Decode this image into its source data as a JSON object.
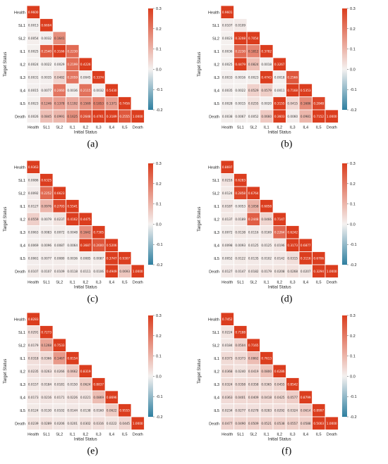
{
  "colors": {
    "negative": "#2e7fa0",
    "neutral": "#f4f1f0",
    "positive": "#db3d1e",
    "grid": "#ffffff"
  },
  "chart_data": [
    {
      "type": "heatmap",
      "panel_label": "(a)",
      "mask": "lower-triangle",
      "rows": [
        "Health",
        "SL1",
        "SL2",
        "IL1",
        "IL2",
        "IL3",
        "IL4",
        "IL5",
        "Death"
      ],
      "cols": [
        "Health",
        "SL1",
        "SL2",
        "IL1",
        "IL2",
        "IL3",
        "IL4",
        "IL5",
        "Death"
      ],
      "xlabel": "Initial Status",
      "ylabel": "Target Status",
      "colorbar": {
        "min": -0.2,
        "max": 0.3,
        "ticks": [
          "0.3",
          "0.2",
          "0.1",
          "0.0",
          "-0.1",
          "-0.2"
        ]
      },
      "values": [
        [
          0.96
        ],
        [
          0.0013,
          0.6604
        ],
        [
          0.0054,
          0.0032,
          0.1641
        ],
        [
          0.0025,
          0.254,
          0.3166,
          0.223
        ],
        [
          0.0024,
          0.0022,
          0.0029,
          0.2199,
          0.4226
        ],
        [
          0.0031,
          0.0035,
          0.0482,
          0.2059,
          0.0045,
          0.3374
        ],
        [
          0.0015,
          0.0077,
          0.206,
          0.0036,
          0.2115,
          0.0032,
          0.543
        ],
        [
          0.0023,
          0.1246,
          0.1378,
          0.1192,
          0.1569,
          0.1853,
          0.1371,
          0.7456
        ],
        [
          0.0026,
          0.0845,
          0.0991,
          0.1625,
          0.2648,
          0.4761,
          0.3189,
          0.2555,
          1.0
        ]
      ]
    },
    {
      "type": "heatmap",
      "panel_label": "(b)",
      "mask": "lower-triangle",
      "rows": [
        "Health",
        "SL1",
        "SL2",
        "IL1",
        "IL2",
        "IL3",
        "IL4",
        "IL5",
        "Death"
      ],
      "cols": [
        "Health",
        "SL1",
        "SL2",
        "IL1",
        "IL2",
        "IL3",
        "IL4",
        "IL5",
        "Death"
      ],
      "xlabel": "Initial Status",
      "ylabel": "Target Status",
      "colorbar": {
        "min": -0.2,
        "max": 0.3,
        "ticks": [
          "0.3",
          "0.2",
          "0.1",
          "0.0",
          "-0.1",
          "-0.2"
        ]
      },
      "values": [
        [
          0.9601
        ],
        [
          0.0107,
          0.0109
        ],
        [
          0.0023,
          0.3208,
          0.7054
        ],
        [
          0.0036,
          0.223,
          0.1812,
          0.3782
        ],
        [
          0.0025,
          0.4479,
          0.0824,
          0.0018,
          0.3267
        ],
        [
          0.0033,
          0.0016,
          0.0023,
          0.4743,
          0.0018,
          0.2566
        ],
        [
          0.0035,
          0.0022,
          0.0529,
          0.0579,
          0.0011,
          0.7168,
          0.5353
        ],
        [
          0.0028,
          0.0015,
          0.0255,
          0.002,
          0.3155,
          0.0415,
          0.1686,
          0.2848
        ],
        [
          0.0038,
          0.0067,
          0.0052,
          0.066,
          0.3603,
          0.006,
          0.0981,
          0.7152,
          1.0
        ]
      ]
    },
    {
      "type": "heatmap",
      "panel_label": "(c)",
      "mask": "lower-triangle",
      "rows": [
        "Health",
        "SL1",
        "SL2",
        "IL1",
        "IL2",
        "IL3",
        "IL4",
        "IL5",
        "Death"
      ],
      "cols": [
        "Health",
        "SL1",
        "SL2",
        "IL1",
        "IL2",
        "IL3",
        "IL4",
        "IL5",
        "Death"
      ],
      "xlabel": "Initial Status",
      "ylabel": "Target Status",
      "colorbar": {
        "min": -0.2,
        "max": 0.3,
        "ticks": [
          "0.3",
          "0.2",
          "0.1",
          "0.0",
          "-0.1",
          "-0.2"
        ]
      },
      "values": [
        [
          0.9363
        ],
        [
          0.0086,
          0.6325
        ],
        [
          0.0092,
          0.2252,
          0.6623
        ],
        [
          0.0127,
          0.0976,
          0.2793,
          0.5541
        ],
        [
          0.0559,
          0.0079,
          0.0237,
          0.4162,
          0.4475
        ],
        [
          0.0063,
          0.0083,
          0.0072,
          0.0048,
          0.1642,
          0.7305
        ],
        [
          0.0069,
          0.0096,
          0.0087,
          0.0064,
          0.3687,
          0.26,
          0.5206
        ],
        [
          0.0061,
          0.0077,
          0.008,
          0.0036,
          0.0085,
          0.0087,
          0.3747,
          0.9307
        ],
        [
          0.0107,
          0.0107,
          0.0109,
          0.0118,
          0.0111,
          0.0106,
          0.4949,
          0.0693,
          1.0
        ]
      ]
    },
    {
      "type": "heatmap",
      "panel_label": "(d)",
      "mask": "lower-triangle",
      "rows": [
        "Health",
        "SL1",
        "SL2",
        "IL1",
        "IL2",
        "IL3",
        "IL4",
        "IL5",
        "Death"
      ],
      "cols": [
        "Health",
        "SL1",
        "SL2",
        "IL1",
        "IL2",
        "IL3",
        "IL4",
        "IL5",
        "Death"
      ],
      "xlabel": "Initial Status",
      "ylabel": "Target Status",
      "colorbar": {
        "min": -0.2,
        "max": 0.3,
        "ticks": [
          "0.3",
          "0.2",
          "0.1",
          "0.0",
          "-0.1",
          "-0.2"
        ]
      },
      "values": [
        [
          0.8697
        ],
        [
          0.0216,
          0.6283
        ],
        [
          0.0124,
          0.2858,
          0.6764
        ],
        [
          0.0187,
          0.0053,
          0.1058,
          0.6858
        ],
        [
          0.0137,
          0.0189,
          0.2448,
          0.0466,
          0.7147
        ],
        [
          0.0072,
          0.0138,
          0.0116,
          0.0169,
          0.2264,
          0.6242
        ],
        [
          0.0098,
          0.0093,
          0.0125,
          0.0125,
          0.0196,
          0.3173,
          0.6877
        ],
        [
          0.0052,
          0.0122,
          0.0135,
          0.0102,
          0.0142,
          0.0315,
          0.3116,
          0.6706
        ],
        [
          0.0127,
          0.0147,
          0.0182,
          0.0179,
          0.0208,
          0.0268,
          0.0207,
          0.3294,
          1.0
        ]
      ]
    },
    {
      "type": "heatmap",
      "panel_label": "(e)",
      "mask": "lower-triangle",
      "rows": [
        "Health",
        "SL1",
        "SL2",
        "IL1",
        "IL2",
        "IL3",
        "IL4",
        "IL5",
        "Death"
      ],
      "cols": [
        "Health",
        "SL1",
        "SL2",
        "IL1",
        "IL2",
        "IL3",
        "IL4",
        "IL5",
        "Death"
      ],
      "xlabel": "Initial Status",
      "ylabel": "Target Status",
      "colorbar": {
        "min": -0.2,
        "max": 0.3,
        "ticks": [
          "0.3",
          "0.2",
          "0.1",
          "0.0",
          "-0.1",
          "-0.2"
        ]
      },
      "values": [
        [
          0.8283
        ],
        [
          0.0291,
          0.7273
        ],
        [
          0.0179,
          0.1268,
          0.7533
        ],
        [
          0.0318,
          0.0366,
          0.1467,
          0.8154
        ],
        [
          0.0235,
          0.0263,
          0.0266,
          0.0662,
          0.8319
        ],
        [
          0.0157,
          0.0184,
          0.0181,
          0.015,
          0.0624,
          0.8837
        ],
        [
          0.0173,
          0.0216,
          0.0171,
          0.0226,
          0.0221,
          0.0869,
          0.8696
        ],
        [
          0.0124,
          0.013,
          0.0102,
          0.0144,
          0.0138,
          0.016,
          0.0622,
          0.9555
        ],
        [
          0.0239,
          0.0289,
          0.0206,
          0.0201,
          0.0302,
          0.0316,
          0.0222,
          0.0445,
          1.0
        ]
      ]
    },
    {
      "type": "heatmap",
      "panel_label": "(f)",
      "mask": "lower-triangle",
      "rows": [
        "Health",
        "SL1",
        "SL2",
        "IL1",
        "IL2",
        "IL3",
        "IL4",
        "IL5",
        "Death"
      ],
      "cols": [
        "Health",
        "SL1",
        "SL2",
        "IL1",
        "IL2",
        "IL3",
        "IL4",
        "IL5",
        "Death"
      ],
      "xlabel": "Initial Status",
      "ylabel": "Target Status",
      "colorbar": {
        "min": -0.2,
        "max": 0.3,
        "ticks": [
          "0.3",
          "0.2",
          "0.1",
          "0.0",
          "-0.1",
          "-0.2"
        ]
      },
      "values": [
        [
          0.7452
        ],
        [
          0.0224,
          0.7188
        ],
        [
          0.0184,
          0.0504,
          0.7165
        ],
        [
          0.0373,
          0.0373,
          0.0862,
          0.7613
        ],
        [
          0.0368,
          0.024,
          0.0419,
          0.08,
          0.6286
        ],
        [
          0.0324,
          0.0358,
          0.0358,
          0.0365,
          0.0455,
          0.8542
        ],
        [
          0.0363,
          0.0401,
          0.0409,
          0.0418,
          0.0425,
          0.0577,
          0.8799
        ],
        [
          0.0234,
          0.0277,
          0.0278,
          0.0283,
          0.0292,
          0.0324,
          0.0614,
          0.8997
        ],
        [
          0.0477,
          0.049,
          0.0509,
          0.0521,
          0.0538,
          0.0557,
          0.0588,
          0.5003,
          1.0
        ]
      ]
    }
  ]
}
